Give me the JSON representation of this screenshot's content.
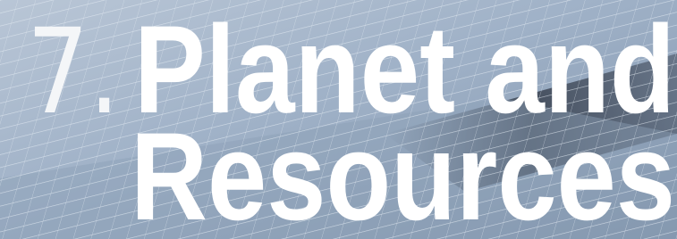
{
  "heading": {
    "number": "7.",
    "lines": [
      "Planet and",
      "Resources"
    ]
  }
}
